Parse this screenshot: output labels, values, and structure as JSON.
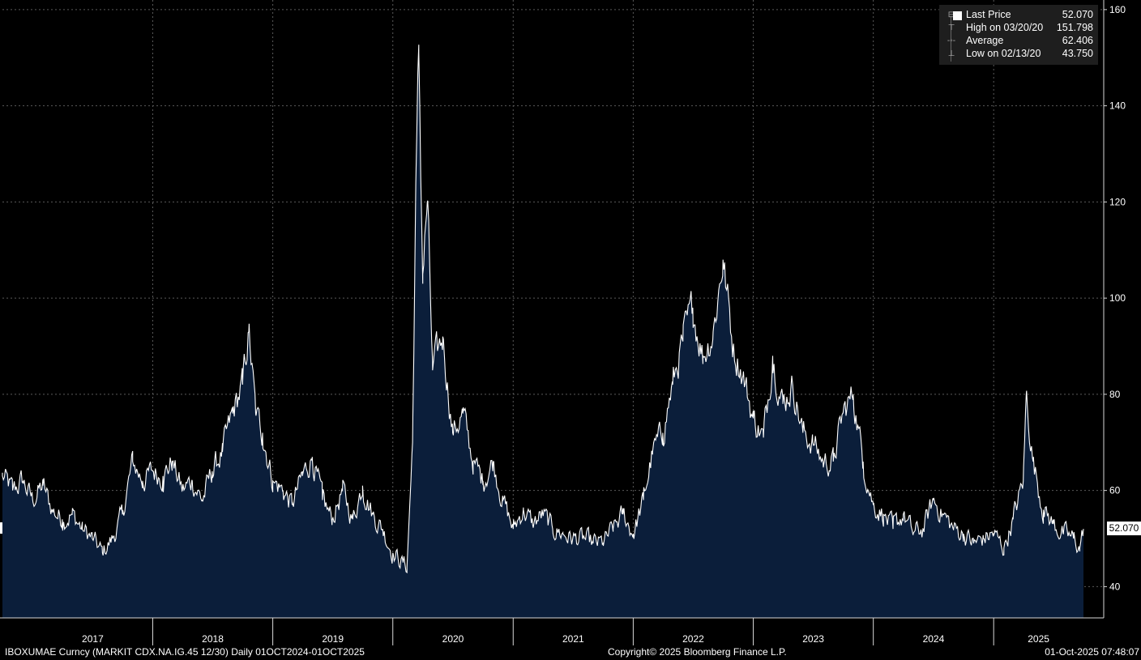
{
  "chart_data": {
    "type": "area",
    "ticker": "IBOXUMAE Curncy (MARKIT CDX.NA.IG.45 12/30) Daily 01OCT2024-01OCT2025",
    "x_labels": [
      "2017",
      "2018",
      "2019",
      "2020",
      "2021",
      "2022",
      "2023",
      "2024",
      "2025"
    ],
    "y_ticks": [
      40,
      60,
      80,
      100,
      120,
      140,
      160
    ],
    "ylim": [
      33.5,
      162
    ],
    "grid": true,
    "legend_position": "top-right",
    "colors": {
      "line": "#ffffff",
      "fill": "#0b1e3a",
      "background": "#000000",
      "grid": "#5a5a5a"
    },
    "series": [
      {
        "keypoints": [
          [
            "2016-10-01",
            63
          ],
          [
            "2016-11-01",
            60
          ],
          [
            "2016-12-01",
            62
          ],
          [
            "2017-01-01",
            58
          ],
          [
            "2017-02-01",
            61
          ],
          [
            "2017-03-01",
            56
          ],
          [
            "2017-04-01",
            54
          ],
          [
            "2017-05-01",
            55
          ],
          [
            "2017-06-01",
            52
          ],
          [
            "2017-07-01",
            50
          ],
          [
            "2017-08-01",
            47
          ],
          [
            "2017-09-01",
            50
          ],
          [
            "2017-10-01",
            55
          ],
          [
            "2017-11-01",
            66
          ],
          [
            "2017-12-01",
            62
          ],
          [
            "2018-01-01",
            64
          ],
          [
            "2018-02-01",
            63
          ],
          [
            "2018-03-01",
            66
          ],
          [
            "2018-04-01",
            60
          ],
          [
            "2018-05-01",
            62
          ],
          [
            "2018-06-01",
            58
          ],
          [
            "2018-07-01",
            64
          ],
          [
            "2018-08-01",
            68
          ],
          [
            "2018-09-01",
            76
          ],
          [
            "2018-10-01",
            82
          ],
          [
            "2018-10-20",
            93
          ],
          [
            "2018-11-10",
            76
          ],
          [
            "2018-12-01",
            72
          ],
          [
            "2019-01-01",
            62
          ],
          [
            "2019-02-01",
            60
          ],
          [
            "2019-03-01",
            57
          ],
          [
            "2019-04-01",
            63
          ],
          [
            "2019-05-01",
            67
          ],
          [
            "2019-06-01",
            58
          ],
          [
            "2019-07-01",
            54
          ],
          [
            "2019-08-01",
            60
          ],
          [
            "2019-09-01",
            54
          ],
          [
            "2019-10-01",
            61
          ],
          [
            "2019-11-01",
            55
          ],
          [
            "2019-12-01",
            52
          ],
          [
            "2020-01-01",
            47
          ],
          [
            "2020-02-01",
            45
          ],
          [
            "2020-02-13",
            44
          ],
          [
            "2020-03-01",
            70
          ],
          [
            "2020-03-10",
            118
          ],
          [
            "2020-03-20",
            151
          ],
          [
            "2020-04-01",
            105
          ],
          [
            "2020-04-15",
            120
          ],
          [
            "2020-05-01",
            85
          ],
          [
            "2020-06-01",
            92
          ],
          [
            "2020-07-01",
            72
          ],
          [
            "2020-08-01",
            76
          ],
          [
            "2020-09-01",
            66
          ],
          [
            "2020-10-01",
            62
          ],
          [
            "2020-11-01",
            66
          ],
          [
            "2020-12-01",
            58
          ],
          [
            "2021-01-01",
            52
          ],
          [
            "2021-02-01",
            56
          ],
          [
            "2021-03-01",
            53
          ],
          [
            "2021-04-01",
            55
          ],
          [
            "2021-05-01",
            52
          ],
          [
            "2021-06-01",
            51
          ],
          [
            "2021-07-01",
            50
          ],
          [
            "2021-08-01",
            50
          ],
          [
            "2021-09-01",
            49
          ],
          [
            "2021-10-01",
            49
          ],
          [
            "2021-11-01",
            52
          ],
          [
            "2021-12-01",
            55
          ],
          [
            "2022-01-01",
            51
          ],
          [
            "2022-02-01",
            58
          ],
          [
            "2022-03-01",
            68
          ],
          [
            "2022-04-01",
            72
          ],
          [
            "2022-05-01",
            82
          ],
          [
            "2022-06-01",
            91
          ],
          [
            "2022-07-01",
            98
          ],
          [
            "2022-08-01",
            88
          ],
          [
            "2022-09-01",
            93
          ],
          [
            "2022-10-01",
            108
          ],
          [
            "2022-11-01",
            90
          ],
          [
            "2022-12-01",
            84
          ],
          [
            "2023-01-01",
            75
          ],
          [
            "2023-02-01",
            71
          ],
          [
            "2023-03-01",
            88
          ],
          [
            "2023-04-01",
            78
          ],
          [
            "2023-05-01",
            82
          ],
          [
            "2023-06-01",
            72
          ],
          [
            "2023-07-01",
            70
          ],
          [
            "2023-08-01",
            66
          ],
          [
            "2023-09-01",
            66
          ],
          [
            "2023-10-01",
            76
          ],
          [
            "2023-11-01",
            80
          ],
          [
            "2023-12-01",
            66
          ],
          [
            "2024-01-01",
            57
          ],
          [
            "2024-02-01",
            55
          ],
          [
            "2024-03-01",
            52
          ],
          [
            "2024-04-01",
            55
          ],
          [
            "2024-05-01",
            51
          ],
          [
            "2024-06-01",
            52
          ],
          [
            "2024-07-01",
            58
          ],
          [
            "2024-08-01",
            55
          ],
          [
            "2024-09-01",
            52
          ],
          [
            "2024-10-01",
            51
          ],
          [
            "2024-11-01",
            49
          ],
          [
            "2024-12-01",
            50
          ],
          [
            "2025-01-01",
            51
          ],
          [
            "2025-02-01",
            48
          ],
          [
            "2025-03-01",
            54
          ],
          [
            "2025-04-01",
            62
          ],
          [
            "2025-04-10",
            80
          ],
          [
            "2025-05-01",
            66
          ],
          [
            "2025-06-01",
            56
          ],
          [
            "2025-07-01",
            53
          ],
          [
            "2025-08-01",
            51
          ],
          [
            "2025-09-01",
            50
          ],
          [
            "2025-09-20",
            48
          ],
          [
            "2025-10-01",
            52
          ]
        ]
      }
    ],
    "legend": [
      {
        "label": "Last Price",
        "value": "52.070",
        "icon": "filled-square"
      },
      {
        "label": "High on 03/20/20",
        "value": "151.798",
        "icon": "high-marker"
      },
      {
        "label": "Average",
        "value": "62.406",
        "icon": "average-marker"
      },
      {
        "label": "Low on 02/13/20",
        "value": "43.750",
        "icon": "low-marker"
      }
    ],
    "last_price_label": "52.070"
  },
  "footer": {
    "left": "IBOXUMAE Curncy (MARKIT CDX.NA.IG.45 12/30) Daily 01OCT2024-01OCT2025",
    "center": "Copyright© 2025 Bloomberg Finance L.P.",
    "right": "01-Oct-2025 07:48:07"
  }
}
